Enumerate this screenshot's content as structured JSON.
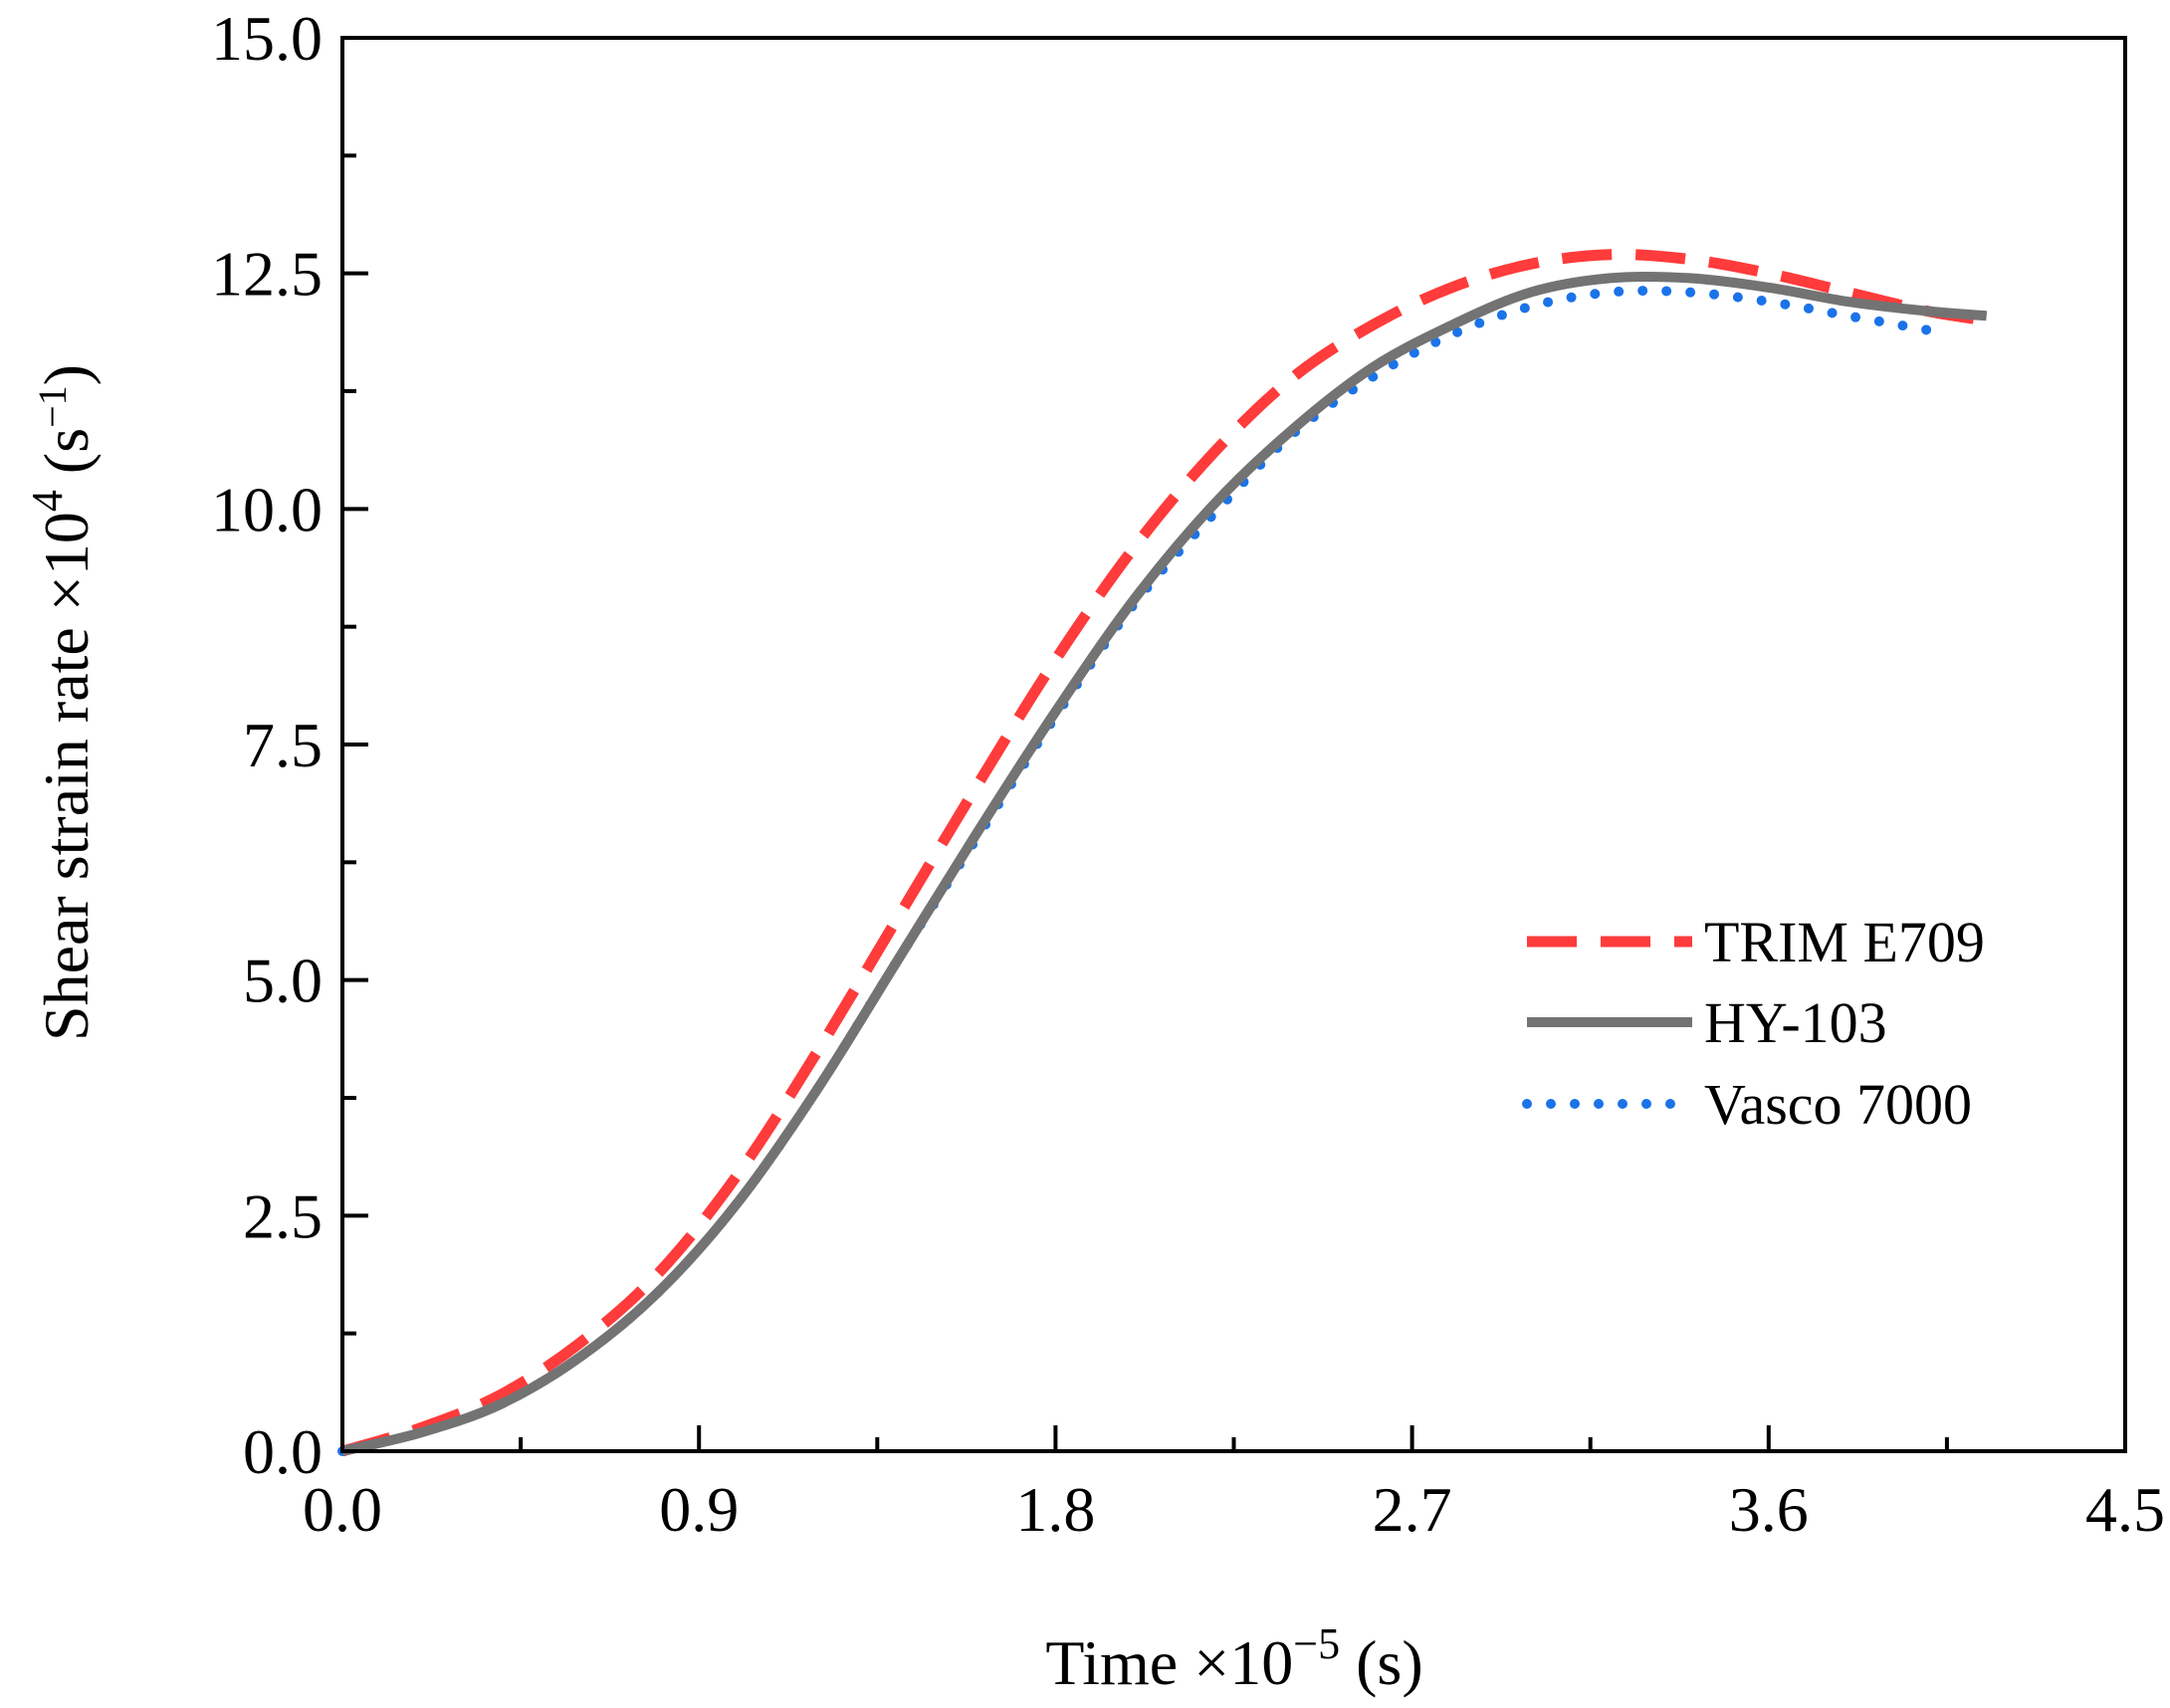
{
  "chart_data": {
    "type": "line",
    "title": "",
    "xlabel": "Time ×10",
    "xlabel_exp": "−5",
    "xlabel_unit": " (s)",
    "ylabel": "Shear strain rate ×10",
    "ylabel_exp": "4",
    "ylabel_unit_pre": " (s",
    "ylabel_unit_exp": "−1",
    "ylabel_unit_post": ")",
    "xlim": [
      0,
      4.5
    ],
    "ylim": [
      0,
      15
    ],
    "xticks": [
      0,
      0.9,
      1.8,
      2.7,
      3.6,
      4.5
    ],
    "xtick_labels": [
      "0.0",
      "0.9",
      "1.8",
      "2.7",
      "3.6",
      "4.5"
    ],
    "yticks": [
      0,
      2.5,
      5,
      7.5,
      10,
      12.5,
      15
    ],
    "ytick_labels": [
      "0.0",
      "2.5",
      "5.0",
      "7.5",
      "10.0",
      "12.5",
      "15.0"
    ],
    "legend_position": "right",
    "series": [
      {
        "name": "TRIM E709",
        "color": "#ff3b3b",
        "style": "dashed",
        "x": [
          0,
          0.2,
          0.4,
          0.6,
          0.8,
          1.0,
          1.2,
          1.4,
          1.6,
          1.8,
          2.0,
          2.2,
          2.4,
          2.6,
          2.8,
          3.0,
          3.2,
          3.4,
          3.6,
          3.8,
          4.0,
          4.15
        ],
        "y": [
          0,
          0.25,
          0.6,
          1.15,
          1.9,
          2.95,
          4.25,
          5.65,
          7.05,
          8.4,
          9.6,
          10.6,
          11.4,
          11.95,
          12.35,
          12.6,
          12.7,
          12.65,
          12.5,
          12.3,
          12.1,
          12.0
        ]
      },
      {
        "name": "HY-103",
        "color": "#737373",
        "style": "solid",
        "x": [
          0,
          0.2,
          0.4,
          0.6,
          0.8,
          1.0,
          1.2,
          1.4,
          1.6,
          1.8,
          2.0,
          2.2,
          2.4,
          2.6,
          2.8,
          3.0,
          3.2,
          3.4,
          3.6,
          3.8,
          4.0,
          4.15
        ],
        "y": [
          0,
          0.2,
          0.5,
          1.0,
          1.7,
          2.65,
          3.85,
          5.2,
          6.55,
          7.85,
          9.05,
          10.05,
          10.85,
          11.5,
          11.95,
          12.3,
          12.45,
          12.45,
          12.35,
          12.2,
          12.1,
          12.05
        ]
      },
      {
        "name": "Vasco 7000",
        "color": "#1a73e8",
        "style": "dotted",
        "x": [
          0,
          0.2,
          0.4,
          0.6,
          0.8,
          1.0,
          1.2,
          1.4,
          1.6,
          1.8,
          2.0,
          2.2,
          2.4,
          2.6,
          2.8,
          3.0,
          3.2,
          3.4,
          3.6,
          3.8,
          4.0
        ],
        "y": [
          0,
          0.2,
          0.5,
          1.0,
          1.7,
          2.65,
          3.85,
          5.2,
          6.5,
          7.8,
          9.0,
          9.95,
          10.8,
          11.4,
          11.85,
          12.15,
          12.3,
          12.3,
          12.2,
          12.05,
          11.9
        ]
      }
    ]
  }
}
